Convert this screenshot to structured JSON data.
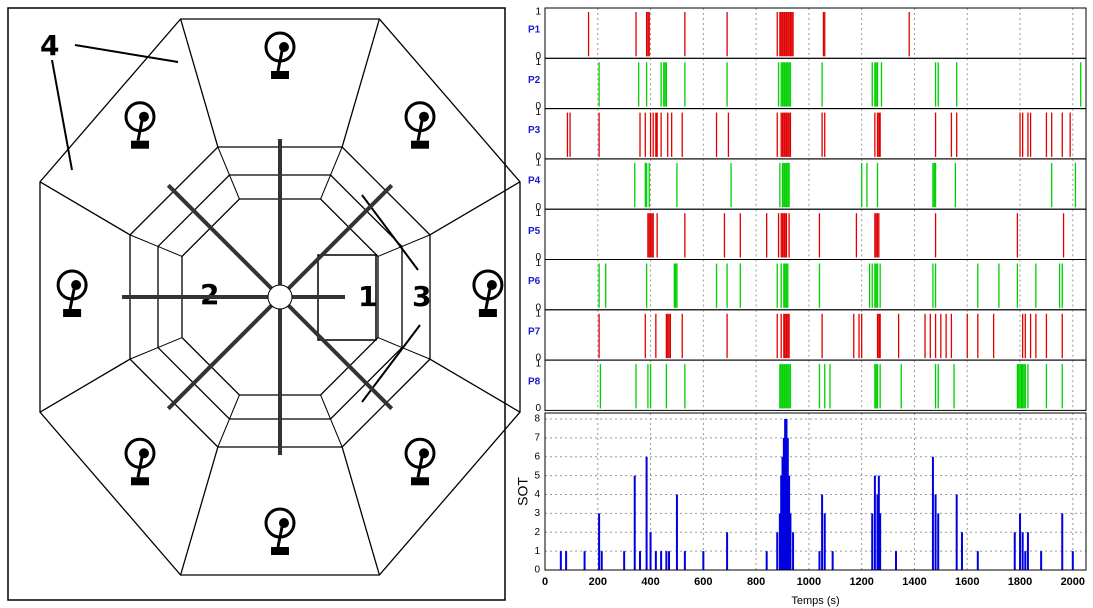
{
  "diagram": {
    "labels": [
      "1",
      "2",
      "3",
      "4"
    ]
  },
  "chart_data": [
    {
      "type": "event",
      "ylim": [
        0,
        1
      ],
      "yticks": [
        0,
        1
      ],
      "series": [
        {
          "name": "P1",
          "color": "#e00000",
          "values": [
            165,
            345,
            385,
            390,
            395,
            530,
            690,
            880,
            890,
            895,
            900,
            905,
            910,
            915,
            920,
            925,
            930,
            935,
            940,
            1055,
            1060,
            1380
          ]
        },
        {
          "name": "P2",
          "color": "#00d000",
          "values": [
            205,
            355,
            385,
            440,
            450,
            455,
            460,
            530,
            690,
            885,
            895,
            900,
            905,
            910,
            915,
            920,
            925,
            930,
            1050,
            1240,
            1250,
            1255,
            1260,
            1275,
            1480,
            1490,
            1560,
            2030
          ]
        },
        {
          "name": "P3",
          "color": "#e00000",
          "values": [
            85,
            95,
            205,
            360,
            380,
            400,
            410,
            420,
            425,
            440,
            465,
            480,
            520,
            650,
            695,
            880,
            895,
            900,
            905,
            910,
            915,
            920,
            925,
            930,
            1050,
            1060,
            1250,
            1260,
            1265,
            1270,
            1480,
            1540,
            1560,
            1800,
            1810,
            1830,
            1840,
            1900,
            1920,
            1960,
            1990
          ]
        },
        {
          "name": "P4",
          "color": "#00d000",
          "values": [
            340,
            380,
            385,
            395,
            500,
            705,
            890,
            900,
            905,
            910,
            915,
            920,
            925,
            1200,
            1220,
            1260,
            1470,
            1475,
            1480,
            1555,
            1920,
            2010
          ]
        },
        {
          "name": "P5",
          "color": "#e00000",
          "values": [
            390,
            395,
            400,
            405,
            410,
            425,
            530,
            680,
            740,
            840,
            885,
            895,
            900,
            905,
            910,
            915,
            925,
            1040,
            1180,
            1250,
            1255,
            1260,
            1265,
            1480,
            1790,
            1965
          ]
        },
        {
          "name": "P6",
          "color": "#00d000",
          "values": [
            205,
            230,
            385,
            490,
            495,
            500,
            650,
            690,
            740,
            880,
            895,
            905,
            910,
            915,
            920,
            1040,
            1230,
            1240,
            1250,
            1255,
            1260,
            1270,
            1470,
            1480,
            1640,
            1720,
            1790,
            1860,
            1950,
            1960
          ]
        },
        {
          "name": "P7",
          "color": "#e00000",
          "values": [
            205,
            380,
            420,
            460,
            465,
            470,
            475,
            520,
            690,
            880,
            895,
            905,
            910,
            915,
            920,
            925,
            1050,
            1170,
            1190,
            1200,
            1260,
            1265,
            1270,
            1340,
            1440,
            1460,
            1480,
            1500,
            1520,
            1540,
            1600,
            1640,
            1700,
            1810,
            1820,
            1840,
            1860,
            1900,
            1960
          ]
        },
        {
          "name": "P8",
          "color": "#00d000",
          "values": [
            210,
            345,
            390,
            400,
            460,
            530,
            890,
            895,
            900,
            905,
            910,
            915,
            920,
            925,
            930,
            1040,
            1060,
            1080,
            1250,
            1255,
            1260,
            1270,
            1350,
            1480,
            1490,
            1550,
            1790,
            1795,
            1800,
            1805,
            1810,
            1815,
            1820,
            1830,
            1900,
            1960
          ]
        }
      ]
    },
    {
      "type": "bar",
      "ylabel": "SOT",
      "xlabel": "Temps (s)",
      "color": "#0000e0",
      "xlim": [
        0,
        2050
      ],
      "xticks": [
        0,
        200,
        400,
        600,
        800,
        1000,
        1200,
        1400,
        1600,
        1800,
        2000
      ],
      "ylim": [
        0,
        8
      ],
      "yticks": [
        0,
        1,
        2,
        3,
        4,
        5,
        6,
        7,
        8
      ],
      "grid": true,
      "x": [
        60,
        80,
        150,
        205,
        215,
        300,
        340,
        360,
        385,
        400,
        420,
        440,
        460,
        470,
        500,
        530,
        600,
        690,
        840,
        880,
        890,
        895,
        900,
        905,
        910,
        915,
        920,
        925,
        930,
        940,
        1040,
        1050,
        1060,
        1090,
        1240,
        1250,
        1260,
        1265,
        1270,
        1330,
        1470,
        1480,
        1490,
        1560,
        1580,
        1640,
        1780,
        1800,
        1810,
        1820,
        1830,
        1880,
        1960,
        2000
      ],
      "values": [
        1,
        1,
        1,
        3,
        1,
        1,
        5,
        1,
        6,
        2,
        1,
        1,
        1,
        1,
        4,
        1,
        1,
        2,
        1,
        2,
        3,
        5,
        6,
        7,
        8,
        8,
        7,
        5,
        3,
        2,
        1,
        4,
        3,
        1,
        3,
        5,
        4,
        5,
        3,
        1,
        6,
        4,
        3,
        4,
        2,
        1,
        2,
        3,
        2,
        1,
        2,
        1,
        3,
        1
      ]
    }
  ]
}
